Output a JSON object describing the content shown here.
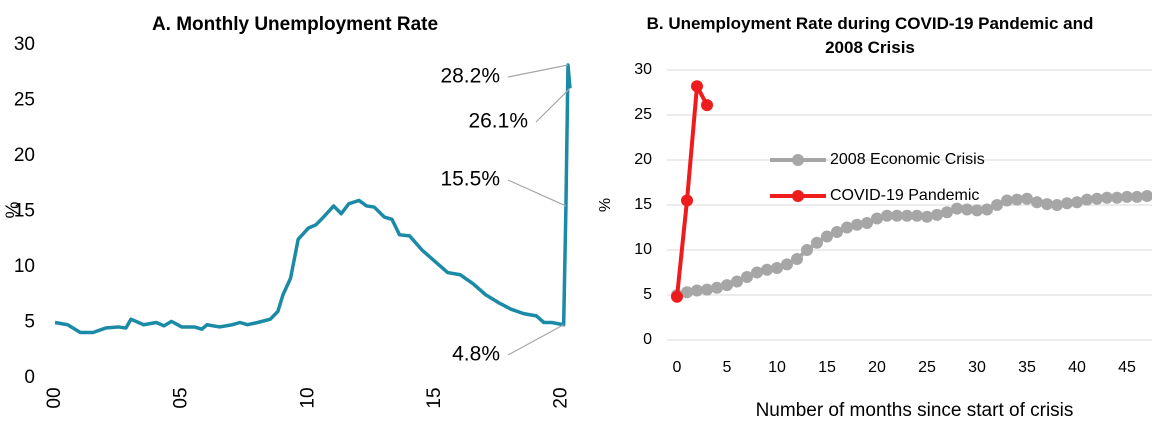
{
  "chart_data": [
    {
      "type": "line",
      "title": "A. Monthly Unemployment Rate",
      "ylabel": "%",
      "xlim": [
        0,
        20.33
      ],
      "xticks": [
        {
          "value": 0,
          "label": "00"
        },
        {
          "value": 5,
          "label": "05"
        },
        10,
        15,
        20
      ],
      "ylim": [
        0,
        30
      ],
      "yticks": [
        0,
        5,
        10,
        15,
        20,
        25,
        30
      ],
      "grid": false,
      "series": [
        {
          "name": "Monthly Unemployment Rate",
          "color": "#1a8aa6",
          "x": [
            0,
            0.5,
            1,
            1.5,
            2,
            2.5,
            2.8,
            3,
            3.5,
            4,
            4.3,
            4.6,
            5,
            5.5,
            5.8,
            6,
            6.5,
            7,
            7.3,
            7.6,
            8,
            8.5,
            8.8,
            9,
            9.3,
            9.6,
            10,
            10.3,
            10.6,
            11,
            11.3,
            11.6,
            12,
            12.3,
            12.6,
            13,
            13.3,
            13.6,
            14,
            14.5,
            15,
            15.5,
            16,
            16.5,
            17,
            17.5,
            18,
            18.5,
            19,
            19.3,
            19.6,
            20.08,
            20.17,
            20.25,
            20.33
          ],
          "values": [
            5.0,
            4.8,
            4.1,
            4.1,
            4.5,
            4.6,
            4.5,
            5.3,
            4.8,
            5.0,
            4.7,
            5.1,
            4.6,
            4.6,
            4.4,
            4.8,
            4.6,
            4.8,
            5.0,
            4.8,
            5.0,
            5.3,
            6.0,
            7.5,
            9.0,
            12.5,
            13.5,
            13.8,
            14.5,
            15.5,
            14.8,
            15.7,
            16.0,
            15.5,
            15.4,
            14.5,
            14.3,
            12.9,
            12.8,
            11.5,
            10.5,
            9.5,
            9.3,
            8.5,
            7.5,
            6.8,
            6.2,
            5.8,
            5.6,
            5.0,
            5.0,
            4.8,
            15.5,
            28.2,
            26.1
          ]
        }
      ],
      "annotations": [
        {
          "x": 20.25,
          "y": 28.2,
          "label": "28.2%"
        },
        {
          "x": 20.33,
          "y": 26.1,
          "label": "26.1%"
        },
        {
          "x": 20.17,
          "y": 15.5,
          "label": "15.5%"
        },
        {
          "x": 20.08,
          "y": 4.8,
          "label": "4.8%"
        }
      ]
    },
    {
      "type": "line",
      "title": "B. Unemployment Rate during COVID-19 Pandemic and 2008 Crisis",
      "ylabel": "%",
      "xlabel": "Number of months since start of crisis",
      "xlim": [
        -1,
        47.5
      ],
      "xticks": [
        0,
        5,
        10,
        15,
        20,
        25,
        30,
        35,
        40,
        45
      ],
      "ylim": [
        0,
        30
      ],
      "yticks": [
        0,
        5,
        10,
        15,
        20,
        25,
        30
      ],
      "grid": true,
      "legend": "right",
      "markers": true,
      "series": [
        {
          "name": "2008 Economic Crisis",
          "color": "#a6a6a6",
          "x": [
            0,
            1,
            2,
            3,
            4,
            5,
            6,
            7,
            8,
            9,
            10,
            11,
            12,
            13,
            14,
            15,
            16,
            17,
            18,
            19,
            20,
            21,
            22,
            23,
            24,
            25,
            26,
            27,
            28,
            29,
            30,
            31,
            32,
            33,
            34,
            35,
            36,
            37,
            38,
            39,
            40,
            41,
            42,
            43,
            44,
            45,
            46,
            47
          ],
          "values": [
            5.0,
            5.3,
            5.5,
            5.6,
            5.8,
            6.1,
            6.5,
            7.0,
            7.5,
            7.8,
            8.0,
            8.4,
            9.0,
            10.0,
            10.8,
            11.5,
            12.0,
            12.5,
            12.8,
            13.0,
            13.5,
            13.8,
            13.8,
            13.8,
            13.8,
            13.7,
            13.9,
            14.2,
            14.6,
            14.5,
            14.4,
            14.5,
            15.0,
            15.5,
            15.6,
            15.7,
            15.3,
            15.1,
            15.0,
            15.2,
            15.3,
            15.6,
            15.7,
            15.8,
            15.8,
            15.9,
            15.9,
            16.0
          ]
        },
        {
          "name": "COVID-19 Pandemic",
          "color": "#ee1c1c",
          "x": [
            0,
            1,
            2,
            3
          ],
          "values": [
            4.8,
            15.5,
            28.2,
            26.1
          ]
        }
      ]
    }
  ]
}
